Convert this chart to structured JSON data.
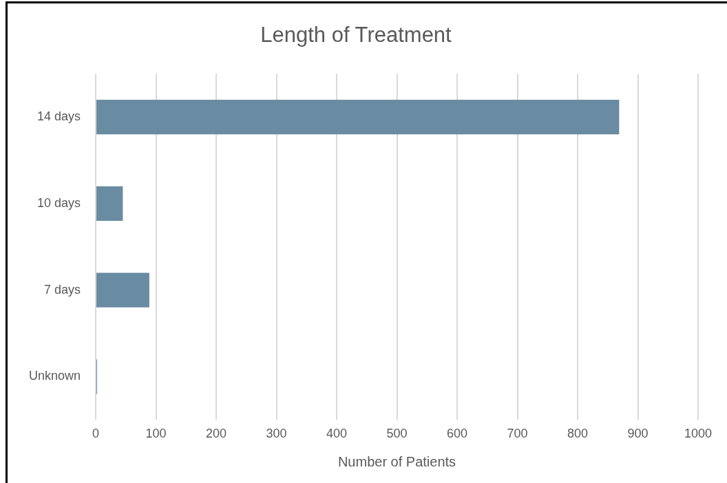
{
  "chart_data": {
    "type": "bar",
    "orientation": "horizontal",
    "title": "Length of Treatment",
    "xlabel": "Number of Patients",
    "categories": [
      "14 days",
      "10 days",
      "7 days",
      "Unknown"
    ],
    "values": [
      869,
      45,
      89,
      1
    ],
    "color": "#6a8ca3",
    "xlim": [
      0,
      1000
    ],
    "xticks": [
      0,
      100,
      200,
      300,
      400,
      500,
      600,
      700,
      800,
      900,
      1000
    ],
    "grid": "x",
    "legend": false
  }
}
